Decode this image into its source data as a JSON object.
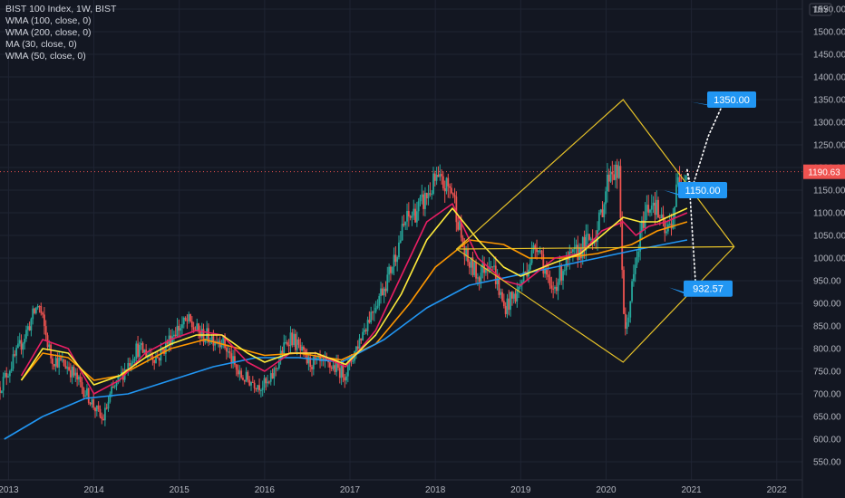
{
  "legend": {
    "symbol": "BIST 100 Index, 1W, BIST",
    "indicators": [
      "WMA (100, close, 0)",
      "WMA (200, close, 0)",
      "MA (30, close, 0)",
      "WMA (50, close, 0)"
    ]
  },
  "currency": "TRY",
  "last_price": "1190.63",
  "colors": {
    "background": "#131722",
    "grid": "#1f2433",
    "up": "#26a69a",
    "down": "#ef5350",
    "wma100": "#ff9800",
    "wma200": "#2196f3",
    "ma30": "#e91e63",
    "wma50": "#ffeb3b",
    "pattern": "#e6c229",
    "annotation": "#2196f3",
    "axis_text": "#b2b5be"
  },
  "chart_data": {
    "type": "candlestick",
    "title": "BIST 100 Index, 1W, BIST",
    "x_ticks": [
      "2013",
      "2014",
      "2015",
      "2016",
      "2017",
      "2018",
      "2019",
      "2020",
      "2021",
      "2022"
    ],
    "y_ticks": [
      550,
      600,
      650,
      700,
      750,
      800,
      850,
      900,
      950,
      1000,
      1050,
      1100,
      1150,
      1200,
      1250,
      1300,
      1350,
      1400,
      1450,
      1500,
      1550
    ],
    "ylim": [
      510,
      1570
    ],
    "xlim": [
      2012.9,
      2022.3
    ],
    "grid": true,
    "price_path": [
      [
        2012.9,
        715
      ],
      [
        2013.1,
        790
      ],
      [
        2013.35,
        900
      ],
      [
        2013.5,
        780
      ],
      [
        2013.7,
        760
      ],
      [
        2013.95,
        690
      ],
      [
        2014.1,
        640
      ],
      [
        2014.2,
        700
      ],
      [
        2014.5,
        800
      ],
      [
        2014.75,
        780
      ],
      [
        2014.95,
        840
      ],
      [
        2015.1,
        860
      ],
      [
        2015.25,
        830
      ],
      [
        2015.5,
        820
      ],
      [
        2015.7,
        740
      ],
      [
        2015.95,
        720
      ],
      [
        2016.05,
        720
      ],
      [
        2016.2,
        790
      ],
      [
        2016.3,
        830
      ],
      [
        2016.5,
        770
      ],
      [
        2016.8,
        760
      ],
      [
        2016.95,
        745
      ],
      [
        2017.2,
        860
      ],
      [
        2017.45,
        960
      ],
      [
        2017.65,
        1080
      ],
      [
        2017.85,
        1120
      ],
      [
        2018.0,
        1170
      ],
      [
        2018.2,
        1150
      ],
      [
        2018.35,
        1000
      ],
      [
        2018.5,
        960
      ],
      [
        2018.65,
        1000
      ],
      [
        2018.8,
        890
      ],
      [
        2018.95,
        920
      ],
      [
        2019.2,
        1040
      ],
      [
        2019.35,
        920
      ],
      [
        2019.5,
        980
      ],
      [
        2019.7,
        1020
      ],
      [
        2019.9,
        1060
      ],
      [
        2020.05,
        1200
      ],
      [
        2020.15,
        1180
      ],
      [
        2020.22,
        820
      ],
      [
        2020.3,
        930
      ],
      [
        2020.45,
        1100
      ],
      [
        2020.55,
        1130
      ],
      [
        2020.7,
        1050
      ],
      [
        2020.78,
        1090
      ],
      [
        2020.85,
        1180
      ],
      [
        2020.95,
        1190
      ]
    ],
    "indicators": [
      {
        "name": "WMA (100, close, 0)",
        "points": [
          [
            2013.15,
            730
          ],
          [
            2013.4,
            790
          ],
          [
            2013.7,
            780
          ],
          [
            2014.0,
            730
          ],
          [
            2014.3,
            740
          ],
          [
            2014.6,
            770
          ],
          [
            2014.9,
            800
          ],
          [
            2015.3,
            820
          ],
          [
            2015.7,
            800
          ],
          [
            2016.0,
            785
          ],
          [
            2016.4,
            790
          ],
          [
            2016.9,
            775
          ],
          [
            2017.3,
            810
          ],
          [
            2017.7,
            900
          ],
          [
            2018.0,
            980
          ],
          [
            2018.4,
            1040
          ],
          [
            2018.8,
            1030
          ],
          [
            2019.1,
            1000
          ],
          [
            2019.5,
            1000
          ],
          [
            2019.9,
            1010
          ],
          [
            2020.3,
            1030
          ],
          [
            2020.6,
            1060
          ],
          [
            2020.95,
            1080
          ]
        ]
      },
      {
        "name": "WMA (200, close, 0)",
        "points": [
          [
            2012.95,
            600
          ],
          [
            2013.4,
            650
          ],
          [
            2013.9,
            690
          ],
          [
            2014.4,
            700
          ],
          [
            2014.9,
            730
          ],
          [
            2015.4,
            760
          ],
          [
            2015.9,
            780
          ],
          [
            2016.4,
            780
          ],
          [
            2016.9,
            770
          ],
          [
            2017.4,
            820
          ],
          [
            2017.9,
            890
          ],
          [
            2018.4,
            940
          ],
          [
            2018.9,
            960
          ],
          [
            2019.4,
            980
          ],
          [
            2019.9,
            1000
          ],
          [
            2020.4,
            1020
          ],
          [
            2020.95,
            1040
          ]
        ]
      },
      {
        "name": "MA (30, close, 0)",
        "points": [
          [
            2013.15,
            740
          ],
          [
            2013.4,
            820
          ],
          [
            2013.7,
            800
          ],
          [
            2014.0,
            700
          ],
          [
            2014.3,
            730
          ],
          [
            2014.6,
            790
          ],
          [
            2014.9,
            820
          ],
          [
            2015.2,
            840
          ],
          [
            2015.5,
            830
          ],
          [
            2015.8,
            770
          ],
          [
            2016.0,
            750
          ],
          [
            2016.3,
            790
          ],
          [
            2016.6,
            790
          ],
          [
            2016.95,
            760
          ],
          [
            2017.3,
            840
          ],
          [
            2017.6,
            960
          ],
          [
            2017.9,
            1080
          ],
          [
            2018.2,
            1120
          ],
          [
            2018.5,
            1000
          ],
          [
            2018.8,
            950
          ],
          [
            2019.0,
            940
          ],
          [
            2019.4,
            1000
          ],
          [
            2019.7,
            1010
          ],
          [
            2019.95,
            1060
          ],
          [
            2020.2,
            1080
          ],
          [
            2020.35,
            1050
          ],
          [
            2020.5,
            1070
          ],
          [
            2020.7,
            1080
          ],
          [
            2020.95,
            1100
          ]
        ]
      },
      {
        "name": "WMA (50, close, 0)",
        "points": [
          [
            2013.15,
            730
          ],
          [
            2013.4,
            800
          ],
          [
            2013.7,
            790
          ],
          [
            2014.0,
            720
          ],
          [
            2014.3,
            740
          ],
          [
            2014.6,
            780
          ],
          [
            2014.9,
            810
          ],
          [
            2015.2,
            830
          ],
          [
            2015.5,
            830
          ],
          [
            2015.8,
            790
          ],
          [
            2016.0,
            770
          ],
          [
            2016.3,
            790
          ],
          [
            2016.6,
            790
          ],
          [
            2016.95,
            765
          ],
          [
            2017.3,
            830
          ],
          [
            2017.6,
            920
          ],
          [
            2017.9,
            1040
          ],
          [
            2018.2,
            1110
          ],
          [
            2018.5,
            1040
          ],
          [
            2018.8,
            980
          ],
          [
            2019.0,
            960
          ],
          [
            2019.4,
            990
          ],
          [
            2019.7,
            1010
          ],
          [
            2019.95,
            1050
          ],
          [
            2020.2,
            1090
          ],
          [
            2020.4,
            1080
          ],
          [
            2020.6,
            1080
          ],
          [
            2020.95,
            1110
          ]
        ]
      }
    ],
    "pattern_diamond": [
      [
        2018.25,
        1020
      ],
      [
        2020.2,
        1350
      ],
      [
        2021.5,
        1025
      ],
      [
        2020.2,
        770
      ]
    ],
    "projections": [
      {
        "label": "1350.00",
        "value": 1350.0,
        "path": [
          [
            2020.95,
            1195
          ],
          [
            2021.0,
            1150
          ],
          [
            2021.2,
            1270
          ],
          [
            2021.38,
            1345
          ]
        ]
      },
      {
        "label": "1150.00",
        "value": 1150.0
      },
      {
        "label": "932.57",
        "value": 932.57,
        "path": [
          [
            2020.95,
            1195
          ],
          [
            2020.98,
            1150
          ],
          [
            2021.05,
            940
          ]
        ]
      }
    ]
  }
}
